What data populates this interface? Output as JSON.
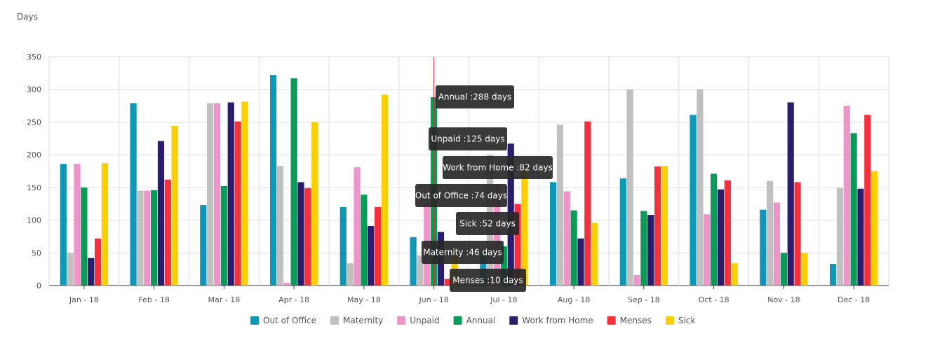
{
  "y_unit_label": "Days",
  "chart_data": {
    "type": "bar",
    "ylabel": "Days",
    "ylim": [
      0,
      350
    ],
    "yticks": [
      0,
      50,
      100,
      150,
      200,
      250,
      300,
      350
    ],
    "grid": true,
    "legend_position": "bottom",
    "categories": [
      "Jan - 18",
      "Feb - 18",
      "Mar - 18",
      "Apr - 18",
      "May - 18",
      "Jun - 18",
      "Jul - 18",
      "Aug - 18",
      "Sep - 18",
      "Oct - 18",
      "Nov - 18",
      "Dec - 18"
    ],
    "series": [
      {
        "name": "Out of Office",
        "color": "#0f97b7",
        "values": [
          186,
          279,
          123,
          322,
          120,
          74,
          50,
          158,
          164,
          261,
          116,
          33
        ]
      },
      {
        "name": "Maternity",
        "color": "#c0c0c0",
        "values": [
          50,
          145,
          279,
          183,
          34,
          46,
          200,
          246,
          300,
          300,
          160,
          149
        ]
      },
      {
        "name": "Unpaid",
        "color": "#ee94c8",
        "values": [
          186,
          145,
          279,
          4,
          181,
          125,
          155,
          144,
          16,
          109,
          127,
          275
        ]
      },
      {
        "name": "Annual",
        "color": "#0a9b59",
        "values": [
          150,
          146,
          152,
          317,
          139,
          288,
          60,
          115,
          114,
          171,
          50,
          233
        ]
      },
      {
        "name": "Work from Home",
        "color": "#2b1d6e",
        "values": [
          42,
          221,
          280,
          158,
          91,
          82,
          217,
          72,
          108,
          147,
          280,
          148
        ]
      },
      {
        "name": "Menses",
        "color": "#f4303c",
        "values": [
          72,
          162,
          251,
          149,
          120,
          10,
          125,
          251,
          182,
          161,
          158,
          261
        ]
      },
      {
        "name": "Sick",
        "color": "#fcd000",
        "values": [
          187,
          244,
          281,
          250,
          292,
          52,
          180,
          96,
          183,
          34,
          50,
          175
        ]
      }
    ]
  },
  "tooltip": {
    "category": "Jun - 18",
    "lines": [
      "Annual :288 days",
      "Unpaid :125 days",
      "Work from Home :82 days",
      "Out of Office :74 days",
      "Sick :52 days",
      "Maternity :46 days",
      "Menses :10 days"
    ]
  }
}
